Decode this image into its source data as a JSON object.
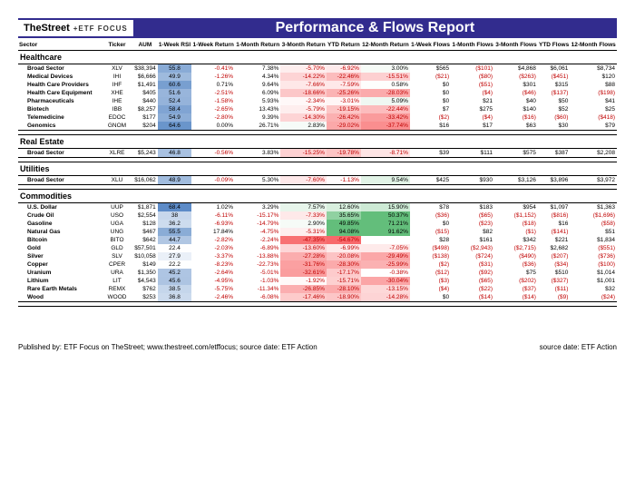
{
  "title": "Performance & Flows Report",
  "logo1": "TheStreet",
  "logo2": "+ETF FOCUS",
  "headers": [
    "Sector",
    "Ticker",
    "AUM",
    "1-Week RSI",
    "1-Week Return",
    "1-Month Return",
    "3-Month Return",
    "YTD Return",
    "12-Month Return",
    "1-Week Flows",
    "1-Month Flows",
    "3-Month Flows",
    "YTD Flows",
    "12-Month Flows"
  ],
  "footer_left": "Published by: ETF Focus on TheStreet; www.thestreet.com/etffocus; source date: ETF Action",
  "footer_right": "source date: ETF Action",
  "rsi_colors": {
    "palette_low": "#f8696b",
    "palette_mid": "#ffeb84",
    "palette_high": "#63be7b",
    "rsi_type": "heatmap",
    "min": 22,
    "max": 69
  },
  "pct_heatmap": {
    "type": "heatmap",
    "low_color": "#f8696b",
    "mid_color": "#ffffff",
    "high_color": "#63be7b",
    "applies_to": [
      "3-Month Return",
      "YTD Return",
      "12-Month Return"
    ]
  },
  "groups": [
    {
      "name": "Healthcare",
      "rows": [
        {
          "n": "Broad Sector",
          "t": "XLV",
          "aum": "$38,394",
          "rsi": 55.8,
          "w1": "-0.41%",
          "m1": "7.38%",
          "m3": "-5.70%",
          "ytd": "-6.92%",
          "m12": "3.00%",
          "fw1": "$565",
          "fm1": "($101)",
          "fm3": "$4,868",
          "fytd": "$6,061",
          "fm12": "$8,734"
        },
        {
          "n": "Medical Devices",
          "t": "IHI",
          "aum": "$6,666",
          "rsi": 49.9,
          "w1": "-1.26%",
          "m1": "4.34%",
          "m3": "-14.22%",
          "ytd": "-22.46%",
          "m12": "-15.51%",
          "fw1": "($21)",
          "fm1": "($80)",
          "fm3": "($263)",
          "fytd": "($451)",
          "fm12": "$120"
        },
        {
          "n": "Health Care Providers",
          "t": "IHF",
          "aum": "$1,491",
          "rsi": 60.6,
          "w1": "0.71%",
          "m1": "9.64%",
          "m3": "-7.66%",
          "ytd": "-7.59%",
          "m12": "0.58%",
          "fw1": "$0",
          "fm1": "($51)",
          "fm3": "$301",
          "fytd": "$315",
          "fm12": "$88"
        },
        {
          "n": "Health Care Equipment",
          "t": "XHE",
          "aum": "$405",
          "rsi": 51.6,
          "w1": "-2.51%",
          "m1": "6.09%",
          "m3": "-18.66%",
          "ytd": "-25.26%",
          "m12": "-28.03%",
          "fw1": "$0",
          "fm1": "($4)",
          "fm3": "($46)",
          "fytd": "($137)",
          "fm12": "($198)"
        },
        {
          "n": "Pharmaceuticals",
          "t": "IHE",
          "aum": "$440",
          "rsi": 52.4,
          "w1": "-1.58%",
          "m1": "5.93%",
          "m3": "-2.34%",
          "ytd": "-3.01%",
          "m12": "5.09%",
          "fw1": "$0",
          "fm1": "$21",
          "fm3": "$40",
          "fytd": "$50",
          "fm12": "$41"
        },
        {
          "n": "Biotech",
          "t": "IBB",
          "aum": "$8,257",
          "rsi": 58.4,
          "w1": "-2.65%",
          "m1": "13.43%",
          "m3": "-5.79%",
          "ytd": "-19.15%",
          "m12": "-22.44%",
          "fw1": "$7",
          "fm1": "$275",
          "fm3": "$140",
          "fytd": "$52",
          "fm12": "$25"
        },
        {
          "n": "Telemedicine",
          "t": "EDOC",
          "aum": "$177",
          "rsi": 54.9,
          "w1": "-2.80%",
          "m1": "9.39%",
          "m3": "-14.30%",
          "ytd": "-26.42%",
          "m12": "-33.42%",
          "fw1": "($2)",
          "fm1": "($4)",
          "fm3": "($16)",
          "fytd": "($60)",
          "fm12": "($418)"
        },
        {
          "n": "Genomics",
          "t": "GNOM",
          "aum": "$204",
          "rsi": 64.6,
          "w1": "0.00%",
          "m1": "26.71%",
          "m3": "2.83%",
          "ytd": "-29.02%",
          "m12": "-37.74%",
          "fw1": "$16",
          "fm1": "$17",
          "fm3": "$63",
          "fytd": "$30",
          "fm12": "$79"
        }
      ]
    },
    {
      "name": "Real Estate",
      "rows": [
        {
          "n": "Broad Sector",
          "t": "XLRE",
          "aum": "$5,243",
          "rsi": 46.8,
          "w1": "-0.56%",
          "m1": "3.83%",
          "m3": "-15.25%",
          "ytd": "-19.78%",
          "m12": "-8.71%",
          "fw1": "$39",
          "fm1": "$111",
          "fm3": "$575",
          "fytd": "$387",
          "fm12": "$2,208"
        }
      ]
    },
    {
      "name": "Utilities",
      "rows": [
        {
          "n": "Broad Sector",
          "t": "XLU",
          "aum": "$16,062",
          "rsi": 48.9,
          "w1": "-0.09%",
          "m1": "5.30%",
          "m3": "-7.60%",
          "ytd": "-1.13%",
          "m12": "9.54%",
          "fw1": "$425",
          "fm1": "$930",
          "fm3": "$3,126",
          "fytd": "$3,896",
          "fm12": "$3,972"
        }
      ]
    },
    {
      "name": "Commodities",
      "rows": [
        {
          "n": "U.S. Dollar",
          "t": "UUP",
          "aum": "$1,871",
          "rsi": 68.4,
          "w1": "1.02%",
          "m1": "3.29%",
          "m3": "7.57%",
          "ytd": "12.60%",
          "m12": "15.90%",
          "fw1": "$78",
          "fm1": "$183",
          "fm3": "$954",
          "fytd": "$1,097",
          "fm12": "$1,363"
        },
        {
          "n": "Crude Oil",
          "t": "USO",
          "aum": "$2,554",
          "rsi": 38.0,
          "w1": "-6.11%",
          "m1": "-15.17%",
          "m3": "-7.33%",
          "ytd": "35.65%",
          "m12": "50.37%",
          "fw1": "($36)",
          "fm1": "($65)",
          "fm3": "($1,152)",
          "fytd": "($816)",
          "fm12": "($1,696)"
        },
        {
          "n": "Gasoline",
          "t": "UGA",
          "aum": "$128",
          "rsi": 36.2,
          "w1": "-6.93%",
          "m1": "-14.79%",
          "m3": "2.90%",
          "ytd": "49.85%",
          "m12": "71.21%",
          "fw1": "$0",
          "fm1": "($23)",
          "fm3": "($18)",
          "fytd": "$16",
          "fm12": "($58)"
        },
        {
          "n": "Natural Gas",
          "t": "UNG",
          "aum": "$467",
          "rsi": 55.5,
          "w1": "17.84%",
          "m1": "-4.75%",
          "m3": "-5.31%",
          "ytd": "94.08%",
          "m12": "91.62%",
          "fw1": "($15)",
          "fm1": "$82",
          "fm3": "($1)",
          "fytd": "($141)",
          "fm12": "$51"
        },
        {
          "n": "Bitcoin",
          "t": "BITO",
          "aum": "$642",
          "rsi": 44.7,
          "w1": "-2.82%",
          "m1": "-2.24%",
          "m3": "-47.35%",
          "ytd": "-54.67%",
          "m12": "",
          "fw1": "$28",
          "fm1": "$161",
          "fm3": "$342",
          "fytd": "$221",
          "fm12": "$1,834"
        },
        {
          "n": "Gold",
          "t": "GLD",
          "aum": "$57,501",
          "rsi": 22.4,
          "w1": "-2.03%",
          "m1": "-6.89%",
          "m3": "-13.60%",
          "ytd": "-6.99%",
          "m12": "-7.05%",
          "fw1": "($498)",
          "fm1": "($2,943)",
          "fm3": "($2,715)",
          "fytd": "$2,682",
          "fm12": "($551)"
        },
        {
          "n": "Silver",
          "t": "SLV",
          "aum": "$10,058",
          "rsi": 27.9,
          "w1": "-3.37%",
          "m1": "-13.88%",
          "m3": "-27.28%",
          "ytd": "-20.08%",
          "m12": "-29.49%",
          "fw1": "($138)",
          "fm1": "($724)",
          "fm3": "($490)",
          "fytd": "($207)",
          "fm12": "($736)"
        },
        {
          "n": "Copper",
          "t": "CPER",
          "aum": "$149",
          "rsi": 22.2,
          "w1": "-8.23%",
          "m1": "-22.73%",
          "m3": "-31.76%",
          "ytd": "-28.30%",
          "m12": "-25.99%",
          "fw1": "($2)",
          "fm1": "($31)",
          "fm3": "($36)",
          "fytd": "($34)",
          "fm12": "($100)"
        },
        {
          "n": "Uranium",
          "t": "URA",
          "aum": "$1,350",
          "rsi": 45.2,
          "w1": "-2.64%",
          "m1": "-5.01%",
          "m3": "-32.61%",
          "ytd": "-17.17%",
          "m12": "-0.38%",
          "fw1": "($12)",
          "fm1": "($92)",
          "fm3": "$75",
          "fytd": "$510",
          "fm12": "$1,014"
        },
        {
          "n": "Lithium",
          "t": "LIT",
          "aum": "$4,543",
          "rsi": 45.6,
          "w1": "-4.95%",
          "m1": "-1.03%",
          "m3": "-1.92%",
          "ytd": "-15.71%",
          "m12": "-30.04%",
          "fw1": "($3)",
          "fm1": "($65)",
          "fm3": "($202)",
          "fytd": "($327)",
          "fm12": "$1,001"
        },
        {
          "n": "Rare Earth Metals",
          "t": "REMX",
          "aum": "$762",
          "rsi": 38.5,
          "w1": "-5.75%",
          "m1": "-11.34%",
          "m3": "-26.85%",
          "ytd": "-28.10%",
          "m12": "-13.15%",
          "fw1": "($4)",
          "fm1": "($22)",
          "fm3": "($37)",
          "fytd": "($11)",
          "fm12": "$32"
        },
        {
          "n": "Wood",
          "t": "WOOD",
          "aum": "$253",
          "rsi": 36.8,
          "w1": "-2.46%",
          "m1": "-6.08%",
          "m3": "-17.46%",
          "ytd": "-18.90%",
          "m12": "-14.28%",
          "fw1": "$0",
          "fm1": "($14)",
          "fm3": "($14)",
          "fytd": "($9)",
          "fm12": "($24)"
        }
      ]
    }
  ]
}
